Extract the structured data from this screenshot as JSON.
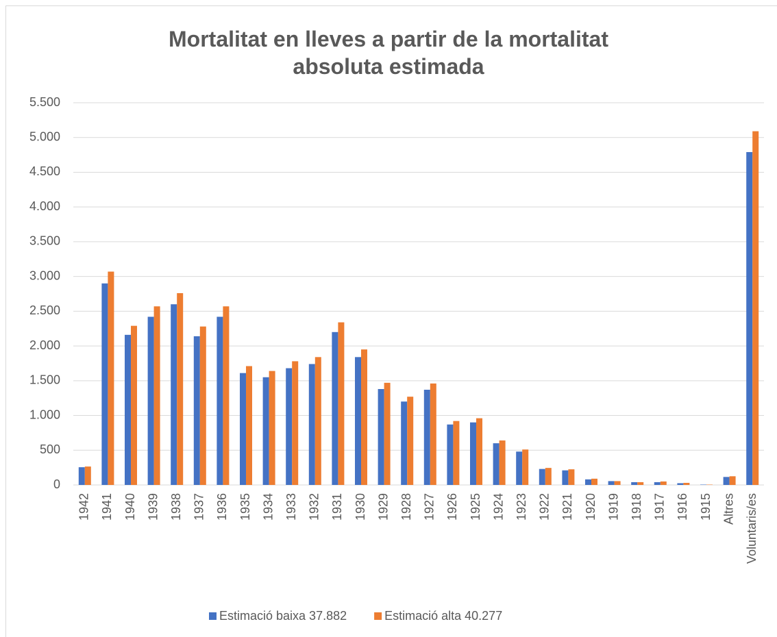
{
  "chart_data": {
    "type": "bar",
    "title": [
      "Mortalitat en lleves a partir de la mortalitat",
      "absoluta estimada"
    ],
    "categories": [
      "1942",
      "1941",
      "1940",
      "1939",
      "1938",
      "1937",
      "1936",
      "1935",
      "1934",
      "1933",
      "1932",
      "1931",
      "1930",
      "1929",
      "1928",
      "1927",
      "1926",
      "1925",
      "1924",
      "1923",
      "1922",
      "1921",
      "1920",
      "1919",
      "1918",
      "1917",
      "1916",
      "1915",
      "Altres",
      "Voluntaris/es"
    ],
    "series": [
      {
        "name": "Estimació baixa 37.882",
        "color": "#4472c4",
        "values": [
          255,
          2900,
          2160,
          2420,
          2600,
          2140,
          2420,
          1610,
          1550,
          1680,
          1740,
          2200,
          1840,
          1380,
          1200,
          1370,
          870,
          900,
          600,
          480,
          230,
          210,
          80,
          55,
          40,
          40,
          25,
          5,
          115,
          4790
        ]
      },
      {
        "name": "Estimació alta 40.277",
        "color": "#ed7d31",
        "values": [
          265,
          3070,
          2290,
          2570,
          2760,
          2280,
          2570,
          1710,
          1640,
          1780,
          1840,
          2340,
          1950,
          1470,
          1270,
          1460,
          920,
          960,
          640,
          510,
          245,
          225,
          90,
          55,
          40,
          50,
          30,
          5,
          125,
          5090
        ]
      }
    ],
    "ylim": [
      0,
      5500
    ],
    "yticks": [
      0,
      500,
      {
        "value": 1000,
        "label": "1.000"
      },
      {
        "value": 1500,
        "label": "1.500"
      },
      {
        "value": 2000,
        "label": "2.000"
      },
      {
        "value": 2500,
        "label": "2.500"
      },
      {
        "value": 3000,
        "label": "3.000"
      },
      {
        "value": 3500,
        "label": "3.500"
      },
      {
        "value": 4000,
        "label": "4.000"
      },
      {
        "value": 4500,
        "label": "4.500"
      },
      {
        "value": 5000,
        "label": "5.000"
      },
      {
        "value": 5500,
        "label": "5.500"
      }
    ],
    "grid": true,
    "legend": "bottom"
  }
}
